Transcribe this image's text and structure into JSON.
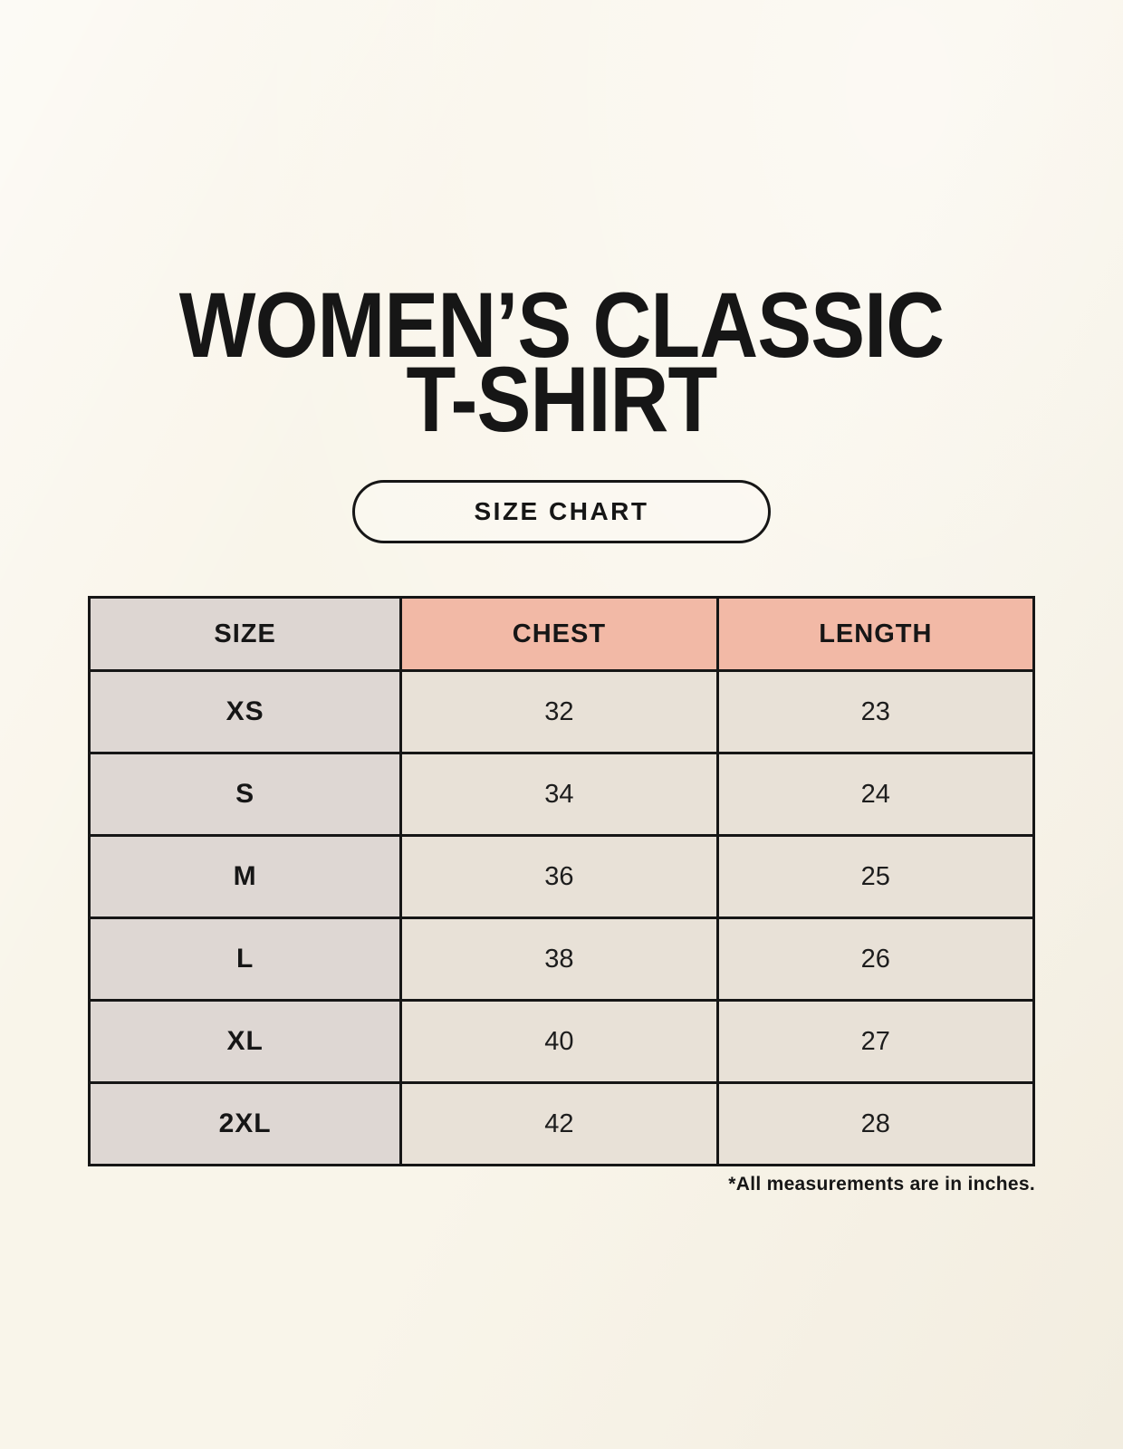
{
  "header": {
    "title_line1": "WOMEN’S CLASSIC",
    "title_line2": "T-SHIRT",
    "badge_label": "SIZE CHART"
  },
  "chart_data": {
    "type": "table",
    "title": "Women’s Classic T-Shirt Size Chart",
    "columns": [
      "SIZE",
      "CHEST",
      "LENGTH"
    ],
    "rows": [
      [
        "XS",
        "32",
        "23"
      ],
      [
        "S",
        "34",
        "24"
      ],
      [
        "M",
        "36",
        "25"
      ],
      [
        "L",
        "38",
        "26"
      ],
      [
        "XL",
        "40",
        "27"
      ],
      [
        "2XL",
        "42",
        "28"
      ]
    ],
    "units": "inches"
  },
  "footnote": "*All measurements are in inches.",
  "colors": {
    "background": "#f9f5ea",
    "header_size_bg": "#ddd6d2",
    "header_measure_bg": "#f2b9a6",
    "size_col_bg": "#ded7d3",
    "data_cell_bg": "#e8e1d7",
    "border": "#161616",
    "text": "#161616"
  }
}
